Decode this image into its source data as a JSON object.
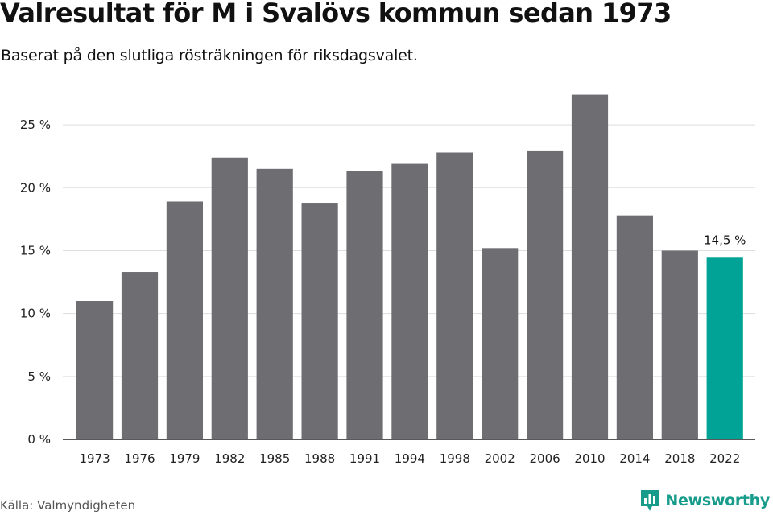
{
  "title": "Valresultat för M i Svalövs kommun sedan 1973",
  "subtitle": "Baserat på den slutliga rösträkningen för riksdagsvalet.",
  "source": "Källa: Valmyndigheten",
  "brand": {
    "name": "Newsworthy",
    "logo_icon": "newsworthy-logo-icon",
    "color": "#179c8c"
  },
  "chart_data": {
    "type": "bar",
    "title": "Valresultat för M i Svalövs kommun sedan 1973",
    "subtitle": "Baserat på den slutliga rösträkningen för riksdagsvalet.",
    "xlabel": "",
    "ylabel": "",
    "categories": [
      "1973",
      "1976",
      "1979",
      "1982",
      "1985",
      "1988",
      "1991",
      "1994",
      "1998",
      "2002",
      "2006",
      "2010",
      "2014",
      "2018",
      "2022"
    ],
    "values": [
      11.0,
      13.3,
      18.9,
      22.4,
      21.5,
      18.8,
      21.3,
      21.9,
      22.8,
      15.2,
      22.9,
      27.4,
      17.8,
      15.0,
      14.5
    ],
    "ylim": [
      0,
      27.5
    ],
    "yticks": [
      0,
      5,
      10,
      15,
      20,
      25
    ],
    "ytick_labels": [
      "0 %",
      "5 %",
      "10 %",
      "15 %",
      "20 %",
      "25 %"
    ],
    "grid": true,
    "legend": "none",
    "colors": {
      "bar": "#6e6d72",
      "highlight": "#00a396",
      "grid": "#dddddd",
      "axis": "#222222"
    },
    "highlight_index": 14,
    "annotations": [
      {
        "category": "2022",
        "text": "14,5 %"
      }
    ]
  }
}
